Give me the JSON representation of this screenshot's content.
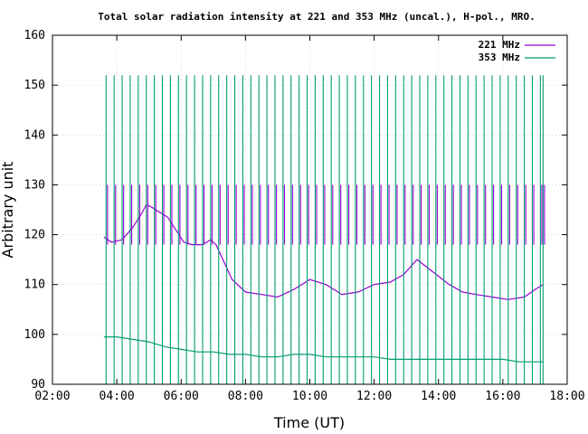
{
  "chart_data": {
    "type": "line",
    "title": "Total solar radiation intensity at 221 and 353 MHz (uncal.), H-pol., MRO.",
    "xlabel": "Time (UT)",
    "ylabel": "Arbitrary unit",
    "xlim": [
      "02:00",
      "18:00"
    ],
    "ylim": [
      90,
      160
    ],
    "xticks": [
      "02:00",
      "04:00",
      "06:00",
      "08:00",
      "10:00",
      "12:00",
      "14:00",
      "16:00",
      "18:00"
    ],
    "yticks": [
      "90",
      "100",
      "110",
      "120",
      "130",
      "140",
      "150",
      "160"
    ],
    "grid": true,
    "legend_position": "top-right",
    "colors": {
      "s221": "#9400d3",
      "s353": "#009e73"
    },
    "series": [
      {
        "name": "221 MHz",
        "x": [
          "03:36",
          "03:50",
          "04:10",
          "04:30",
          "04:45",
          "04:55",
          "05:05",
          "05:20",
          "05:35",
          "05:50",
          "06:05",
          "06:20",
          "06:40",
          "06:55",
          "07:05",
          "07:20",
          "07:35",
          "08:00",
          "08:30",
          "09:00",
          "09:30",
          "10:00",
          "10:30",
          "11:00",
          "11:30",
          "12:00",
          "12:30",
          "12:55",
          "13:20",
          "13:50",
          "14:20",
          "14:45",
          "15:10",
          "15:40",
          "16:10",
          "16:40",
          "17:00",
          "17:15"
        ],
        "values": [
          119.5,
          118.5,
          119,
          121.5,
          124,
          126,
          125.5,
          124.5,
          123.5,
          121,
          118.5,
          118,
          118,
          119,
          118,
          114.5,
          111,
          108.5,
          108,
          107.5,
          109,
          111,
          110,
          108,
          108.5,
          110,
          110.5,
          112,
          115,
          112.5,
          110,
          108.5,
          108,
          107.5,
          107,
          107.5,
          109,
          110
        ]
      },
      {
        "name": "353 MHz",
        "x": [
          "03:36",
          "04:00",
          "04:30",
          "05:00",
          "05:30",
          "06:00",
          "06:30",
          "07:00",
          "07:30",
          "08:00",
          "08:30",
          "09:00",
          "09:30",
          "10:00",
          "10:30",
          "11:00",
          "11:30",
          "12:00",
          "12:30",
          "13:00",
          "13:30",
          "14:00",
          "14:30",
          "15:00",
          "15:30",
          "16:00",
          "16:30",
          "17:00",
          "17:15"
        ],
        "values": [
          99.5,
          99.5,
          99,
          98.5,
          97.5,
          97,
          96.5,
          96.5,
          96,
          96,
          95.5,
          95.5,
          96,
          96,
          95.5,
          95.5,
          95.5,
          95.5,
          95,
          95,
          95,
          95,
          95,
          95,
          95,
          95,
          94.5,
          94.5,
          94.5
        ]
      }
    ],
    "calibration_spikes": {
      "x": [
        "03:40",
        "03:55",
        "04:10",
        "04:25",
        "04:40",
        "04:55",
        "05:10",
        "05:25",
        "05:40",
        "05:55",
        "06:10",
        "06:25",
        "06:40",
        "06:55",
        "07:10",
        "07:25",
        "07:40",
        "07:55",
        "08:10",
        "08:25",
        "08:40",
        "08:55",
        "09:10",
        "09:25",
        "09:40",
        "09:55",
        "10:10",
        "10:25",
        "10:40",
        "10:55",
        "11:10",
        "11:25",
        "11:40",
        "11:55",
        "12:10",
        "12:25",
        "12:40",
        "12:55",
        "13:10",
        "13:25",
        "13:40",
        "13:55",
        "14:10",
        "14:25",
        "14:40",
        "14:55",
        "15:10",
        "15:25",
        "15:40",
        "15:55",
        "16:10",
        "16:25",
        "16:40",
        "16:55",
        "17:10",
        "17:15"
      ],
      "peak_353": 152,
      "peak_221": 130
    }
  }
}
